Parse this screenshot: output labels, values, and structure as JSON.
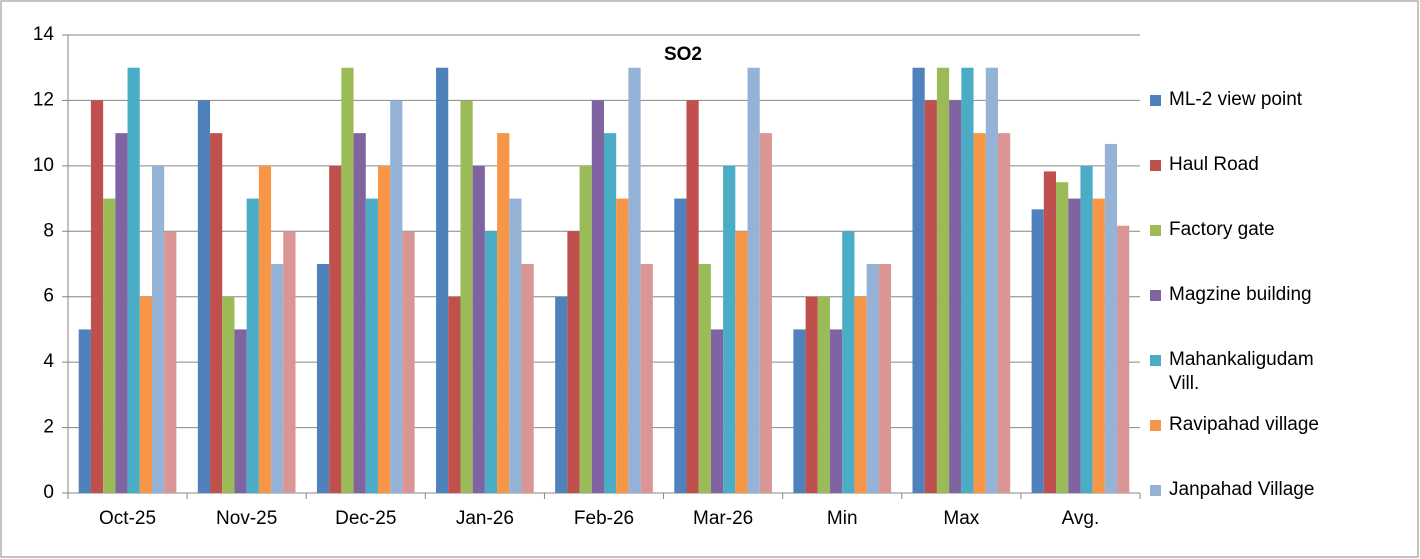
{
  "chart_data": {
    "type": "bar",
    "title": "SO2",
    "categories": [
      "Oct-25",
      "Nov-25",
      "Dec-25",
      "Jan-26",
      "Feb-26",
      "Mar-26",
      "Min",
      "Max",
      "Avg."
    ],
    "series": [
      {
        "name": "ML-2 view point",
        "color": "#4f81bd",
        "values": [
          5,
          12,
          7,
          13,
          6,
          9,
          5,
          13,
          8.67
        ]
      },
      {
        "name": "Haul Road",
        "color": "#c0504d",
        "values": [
          12,
          11,
          10,
          6,
          8,
          12,
          6,
          12,
          9.83
        ]
      },
      {
        "name": "Factory gate",
        "color": "#9bbb59",
        "values": [
          9,
          6,
          13,
          12,
          10,
          7,
          6,
          13,
          9.5
        ]
      },
      {
        "name": "Magzine building",
        "color": "#8064a2",
        "values": [
          11,
          5,
          11,
          10,
          12,
          5,
          5,
          12,
          9
        ]
      },
      {
        "name": "Mahankaligudam Vill.",
        "color": "#4bacc6",
        "values": [
          13,
          9,
          9,
          8,
          11,
          10,
          8,
          13,
          10
        ]
      },
      {
        "name": "Ravipahad village",
        "color": "#f79646",
        "values": [
          6,
          10,
          10,
          11,
          9,
          8,
          6,
          11,
          9
        ]
      },
      {
        "name": "Janpahad Village",
        "color": "#95b3d7",
        "values": [
          10,
          7,
          12,
          9,
          13,
          13,
          7,
          13,
          10.67
        ]
      },
      {
        "color": "#d99694",
        "values": [
          8,
          8,
          8,
          7,
          7,
          11,
          7,
          11,
          8.17
        ]
      }
    ],
    "ylim": [
      0,
      14
    ],
    "yticks": [
      0,
      2,
      4,
      6,
      8,
      10,
      12,
      14
    ],
    "grid": true,
    "legend": "right"
  }
}
